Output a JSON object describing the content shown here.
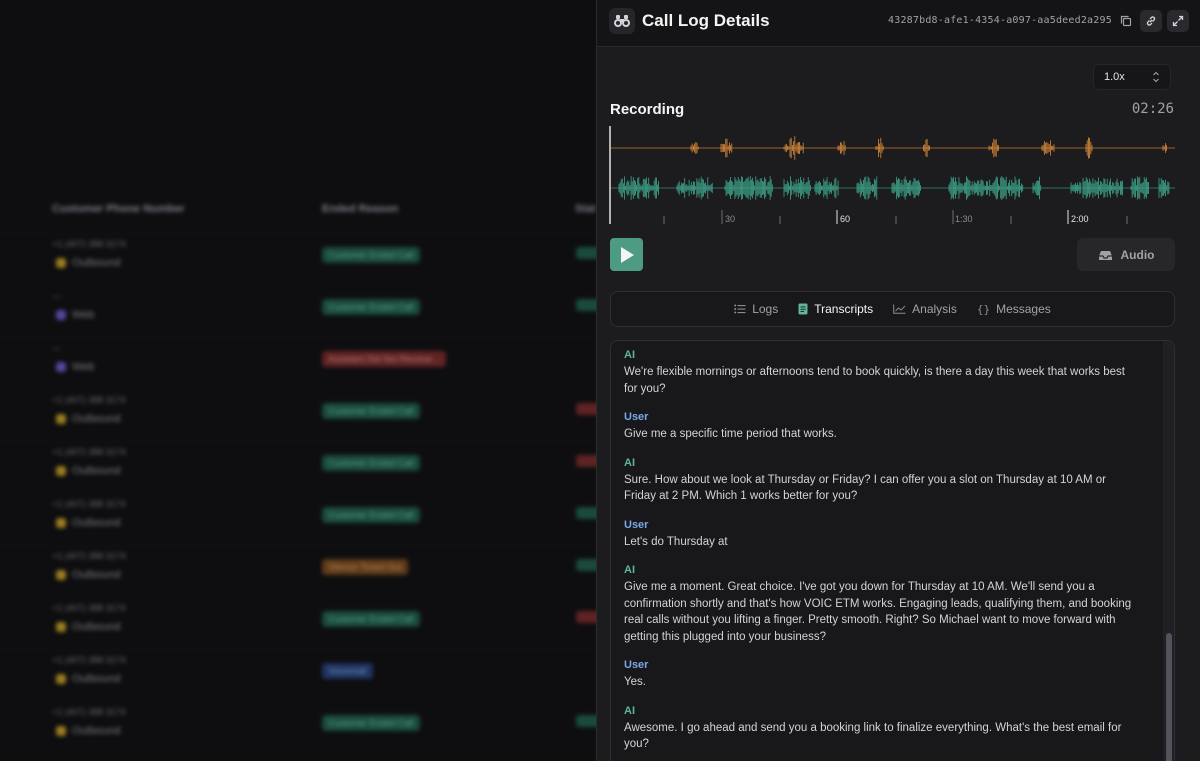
{
  "background_table": {
    "headers": [
      "Customer Phone Number",
      "Ended Reason",
      "Stat"
    ],
    "rows": [
      {
        "phone": "+1 (407) 388 3174",
        "direction": "Outbound",
        "reason": "Customer Ended Call",
        "kind": "outbound",
        "tone": "green",
        "status": "green"
      },
      {
        "phone": "—",
        "direction": "Web",
        "reason": "Customer Ended Call",
        "kind": "web",
        "tone": "green",
        "status": "green"
      },
      {
        "phone": "—",
        "direction": "Web",
        "reason": "Assistant Did Not Receive...",
        "kind": "web",
        "tone": "red",
        "status": "none"
      },
      {
        "phone": "+1 (407) 388 3174",
        "direction": "Outbound",
        "reason": "Customer Ended Call",
        "kind": "outbound",
        "tone": "green",
        "status": "red"
      },
      {
        "phone": "+1 (407) 388 3174",
        "direction": "Outbound",
        "reason": "Customer Ended Call",
        "kind": "outbound",
        "tone": "green",
        "status": "red"
      },
      {
        "phone": "+1 (407) 388 3174",
        "direction": "Outbound",
        "reason": "Customer Ended Call",
        "kind": "outbound",
        "tone": "green",
        "status": "green"
      },
      {
        "phone": "+1 (407) 388 3174",
        "direction": "Outbound",
        "reason": "Silence Timed Out",
        "kind": "outbound",
        "tone": "orange",
        "status": "green"
      },
      {
        "phone": "+1 (407) 388 3174",
        "direction": "Outbound",
        "reason": "Customer Ended Call",
        "kind": "outbound",
        "tone": "green",
        "status": "red"
      },
      {
        "phone": "+1 (407) 388 3174",
        "direction": "Outbound",
        "reason": "Voicemail",
        "kind": "outbound",
        "tone": "blue",
        "status": "none"
      },
      {
        "phone": "+1 (407) 388 3174",
        "direction": "Outbound",
        "reason": "Customer Ended Call",
        "kind": "outbound",
        "tone": "green",
        "status": "green"
      }
    ]
  },
  "colors": {
    "accent": "#4d9b84",
    "ai_speaker": "#5fb59a",
    "user_speaker": "#7aa7e6",
    "waveform_top": "#d98b3a",
    "waveform_bottom": "#3fa68c",
    "badge_green": "#1f5f4b",
    "badge_red": "#7a2a2a",
    "badge_orange": "#7a4a1e",
    "badge_blue": "#24407a"
  },
  "panel": {
    "title": "Call Log Details",
    "title_icon": "binoculars-icon",
    "call_id": "43287bd8-afe1-4354-a097-aa5deed2a295",
    "speed": {
      "value": "1.0x"
    },
    "recording": {
      "label": "Recording",
      "duration": "02:26",
      "timeline_labels": [
        "30",
        "60",
        "1:30",
        "2:00"
      ]
    },
    "audio_button": "Audio",
    "tabs": [
      {
        "label": "Logs",
        "icon": "list-icon",
        "active": false
      },
      {
        "label": "Transcripts",
        "icon": "document-icon",
        "active": true
      },
      {
        "label": "Analysis",
        "icon": "chart-icon",
        "active": false
      },
      {
        "label": "Messages",
        "icon": "braces-icon",
        "active": false
      }
    ],
    "transcript": [
      {
        "speaker": "AI",
        "text": "We're flexible mornings or afternoons tend to book quickly, is there a day this week that works best for you?"
      },
      {
        "speaker": "User",
        "text": "Give me a specific time period that works."
      },
      {
        "speaker": "AI",
        "text": "Sure. How about we look at Thursday or Friday? I can offer you a slot on Thursday at 10 AM or Friday at 2 PM. Which 1 works better for you?"
      },
      {
        "speaker": "User",
        "text": "Let's do Thursday at"
      },
      {
        "speaker": "AI",
        "text": "Give me a moment. Great choice. I've got you down for Thursday at 10 AM. We'll send you a confirmation shortly and that's how VOIC ETM works. Engaging leads, qualifying them, and booking real calls without you lifting a finger. Pretty smooth. Right? So Michael want to move forward with getting this plugged into your business?"
      },
      {
        "speaker": "User",
        "text": "Yes."
      },
      {
        "speaker": "AI",
        "text": "Awesome. I go ahead and send you a booking link to finalize everything. What's the best email for you?"
      }
    ]
  }
}
